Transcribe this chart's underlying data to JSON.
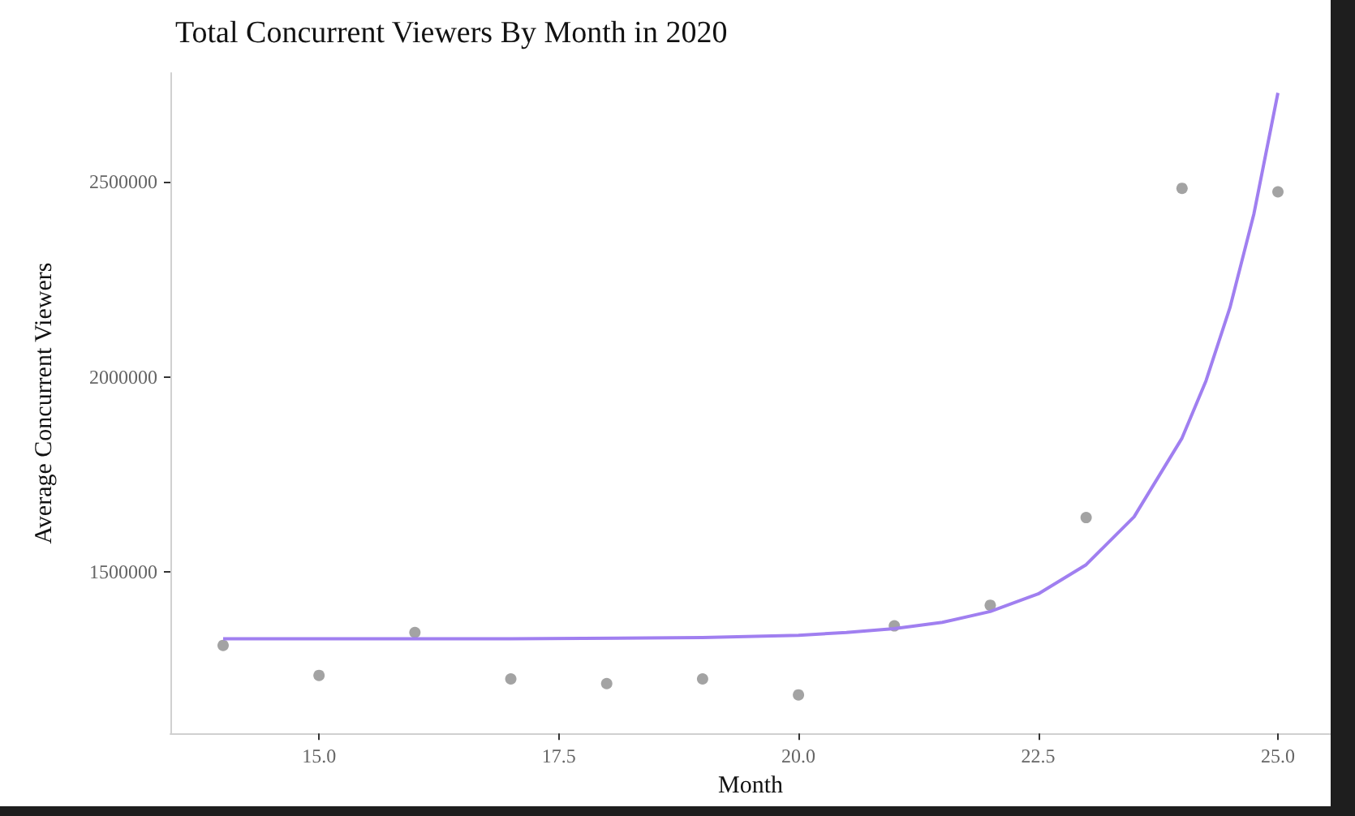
{
  "chart_data": {
    "type": "scatter",
    "title": "Total Concurrent Viewers By Month in 2020",
    "xlabel": "Month",
    "ylabel": "Average Concurrent Viewers",
    "series": [
      {
        "color": "#8c8c8c",
        "marker": "circle",
        "x": [
          14,
          15,
          16,
          17,
          18,
          19,
          20,
          21,
          22,
          23,
          24,
          25
        ],
        "values": [
          1311000,
          1234000,
          1344000,
          1225000,
          1213000,
          1225000,
          1184000,
          1361000,
          1414000,
          1639000,
          2484000,
          2475000
        ]
      },
      {
        "type": "line",
        "color": "#a07ff0",
        "marker": "none",
        "x": [
          14,
          17,
          19,
          20,
          20.5,
          21,
          21.5,
          22,
          22.5,
          23,
          23.5,
          24,
          24.25,
          24.5,
          24.75,
          25
        ],
        "values": [
          1328000,
          1328000,
          1331000,
          1337000,
          1344000,
          1354000,
          1370000,
          1398000,
          1443000,
          1518000,
          1641000,
          1843000,
          1990000,
          2178000,
          2419000,
          2729000
        ]
      }
    ],
    "xlim": [
      13.45,
      25.55
    ],
    "ylim": [
      1085000,
      2780000
    ],
    "xticks": [
      {
        "value": 15,
        "label": "15.0"
      },
      {
        "value": 17.5,
        "label": "17.5"
      },
      {
        "value": 20,
        "label": "20.0"
      },
      {
        "value": 22.5,
        "label": "22.5"
      },
      {
        "value": 25,
        "label": "25.0"
      }
    ],
    "yticks": [
      1500000,
      2000000,
      2500000
    ],
    "grid": false
  }
}
